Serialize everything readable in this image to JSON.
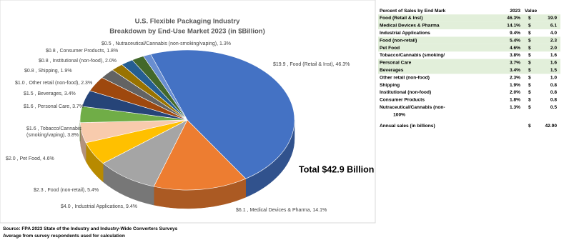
{
  "chart_data": {
    "type": "pie",
    "title": "U.S. Flexible Packaging Industry",
    "subtitle": "Breakdown by End-Use Market 2023 (in $Billion)",
    "values": [
      19.9,
      6.1,
      4.0,
      2.3,
      2.0,
      1.6,
      1.6,
      1.5,
      1.0,
      0.8,
      0.8,
      0.8,
      0.5
    ],
    "value_labels": [
      "$19.9 , Food (Retail & Inst), 46.3%",
      "$6.1 , Medical Devices & Pharma, 14.1%",
      "$4.0 , Industrial Applications, 9.4%",
      "$2.3 , Food (non-retail), 5.4%",
      "$2.0 , Pet Food, 4.6%",
      "$1.6 , Tobacco/Cannabis\n(smoking/vaping), 3.8%",
      "$1.6 , Personal Care, 3.7%",
      "$1.5 , Beverages, 3.4%",
      "$1.0 , Other retail (non-food), 2.3%",
      "$0.8 , Shipping, 1.9%",
      "$0.8 , Institutional (non-food), 2.0%",
      "$0.8 , Consumer Products, 1.8%",
      "$0.5 , Nutraceutical/Cannabis (non-smoking/vaping), 1.3%"
    ],
    "colors": [
      "#4472c4",
      "#ed7d31",
      "#a5a5a5",
      "#ffc000",
      "#f8cbad",
      "#70ad47",
      "#264478",
      "#9e480e",
      "#636363",
      "#997300",
      "#255e91",
      "#43682b",
      "#698ed0"
    ],
    "annotation": "Total $42.9 Billion"
  },
  "table": {
    "header": [
      "Percent of Sales by End Mark",
      "2023",
      "Value"
    ],
    "shade_color": "#e2efda",
    "rows": [
      {
        "label": "Food (Retail & Inst)",
        "percent": "46.3%",
        "currency": "$",
        "value": "19.9",
        "shaded": true
      },
      {
        "label": "Medical Devices & Pharma",
        "percent": "14.1%",
        "currency": "$",
        "value": "6.1",
        "shaded": true
      },
      {
        "label": "Industrial Applications",
        "percent": "9.4%",
        "currency": "$",
        "value": "4.0"
      },
      {
        "label": "Food (non-retail)",
        "percent": "5.4%",
        "currency": "$",
        "value": "2.3",
        "shaded": true
      },
      {
        "label": "Pet Food",
        "percent": "4.6%",
        "currency": "$",
        "value": "2.0",
        "shaded": true
      },
      {
        "label": "Tobacco/Cannabis (smoking/",
        "percent": "3.8%",
        "currency": "$",
        "value": "1.6"
      },
      {
        "label": "Personal Care",
        "percent": "3.7%",
        "currency": "$",
        "value": "1.6",
        "shaded": true
      },
      {
        "label": "Beverages",
        "percent": "3.4%",
        "currency": "$",
        "value": "1.5",
        "shaded": true
      },
      {
        "label": "Other retail (non-food)",
        "percent": "2.3%",
        "currency": "$",
        "value": "1.0"
      },
      {
        "label": "Shipping",
        "percent": "1.9%",
        "currency": "$",
        "value": "0.8"
      },
      {
        "label": "Institutional (non-food)",
        "percent": "2.0%",
        "currency": "$",
        "value": "0.8"
      },
      {
        "label": "Consumer Products",
        "percent": "1.8%",
        "currency": "$",
        "value": "0.8"
      },
      {
        "label": "Nutraceutical/Cannabis (non-",
        "percent": "1.3%",
        "currency": "$",
        "value": "0.5"
      }
    ],
    "total_percent": "100%",
    "annual": {
      "label": "Annual sales (in billions)",
      "currency": "$",
      "value": "42.90"
    }
  },
  "source": [
    "Source: FPA 2023 State of the Industry and Industry-Wide Converters Surveys",
    "Average from survey respondents used for calculation"
  ]
}
